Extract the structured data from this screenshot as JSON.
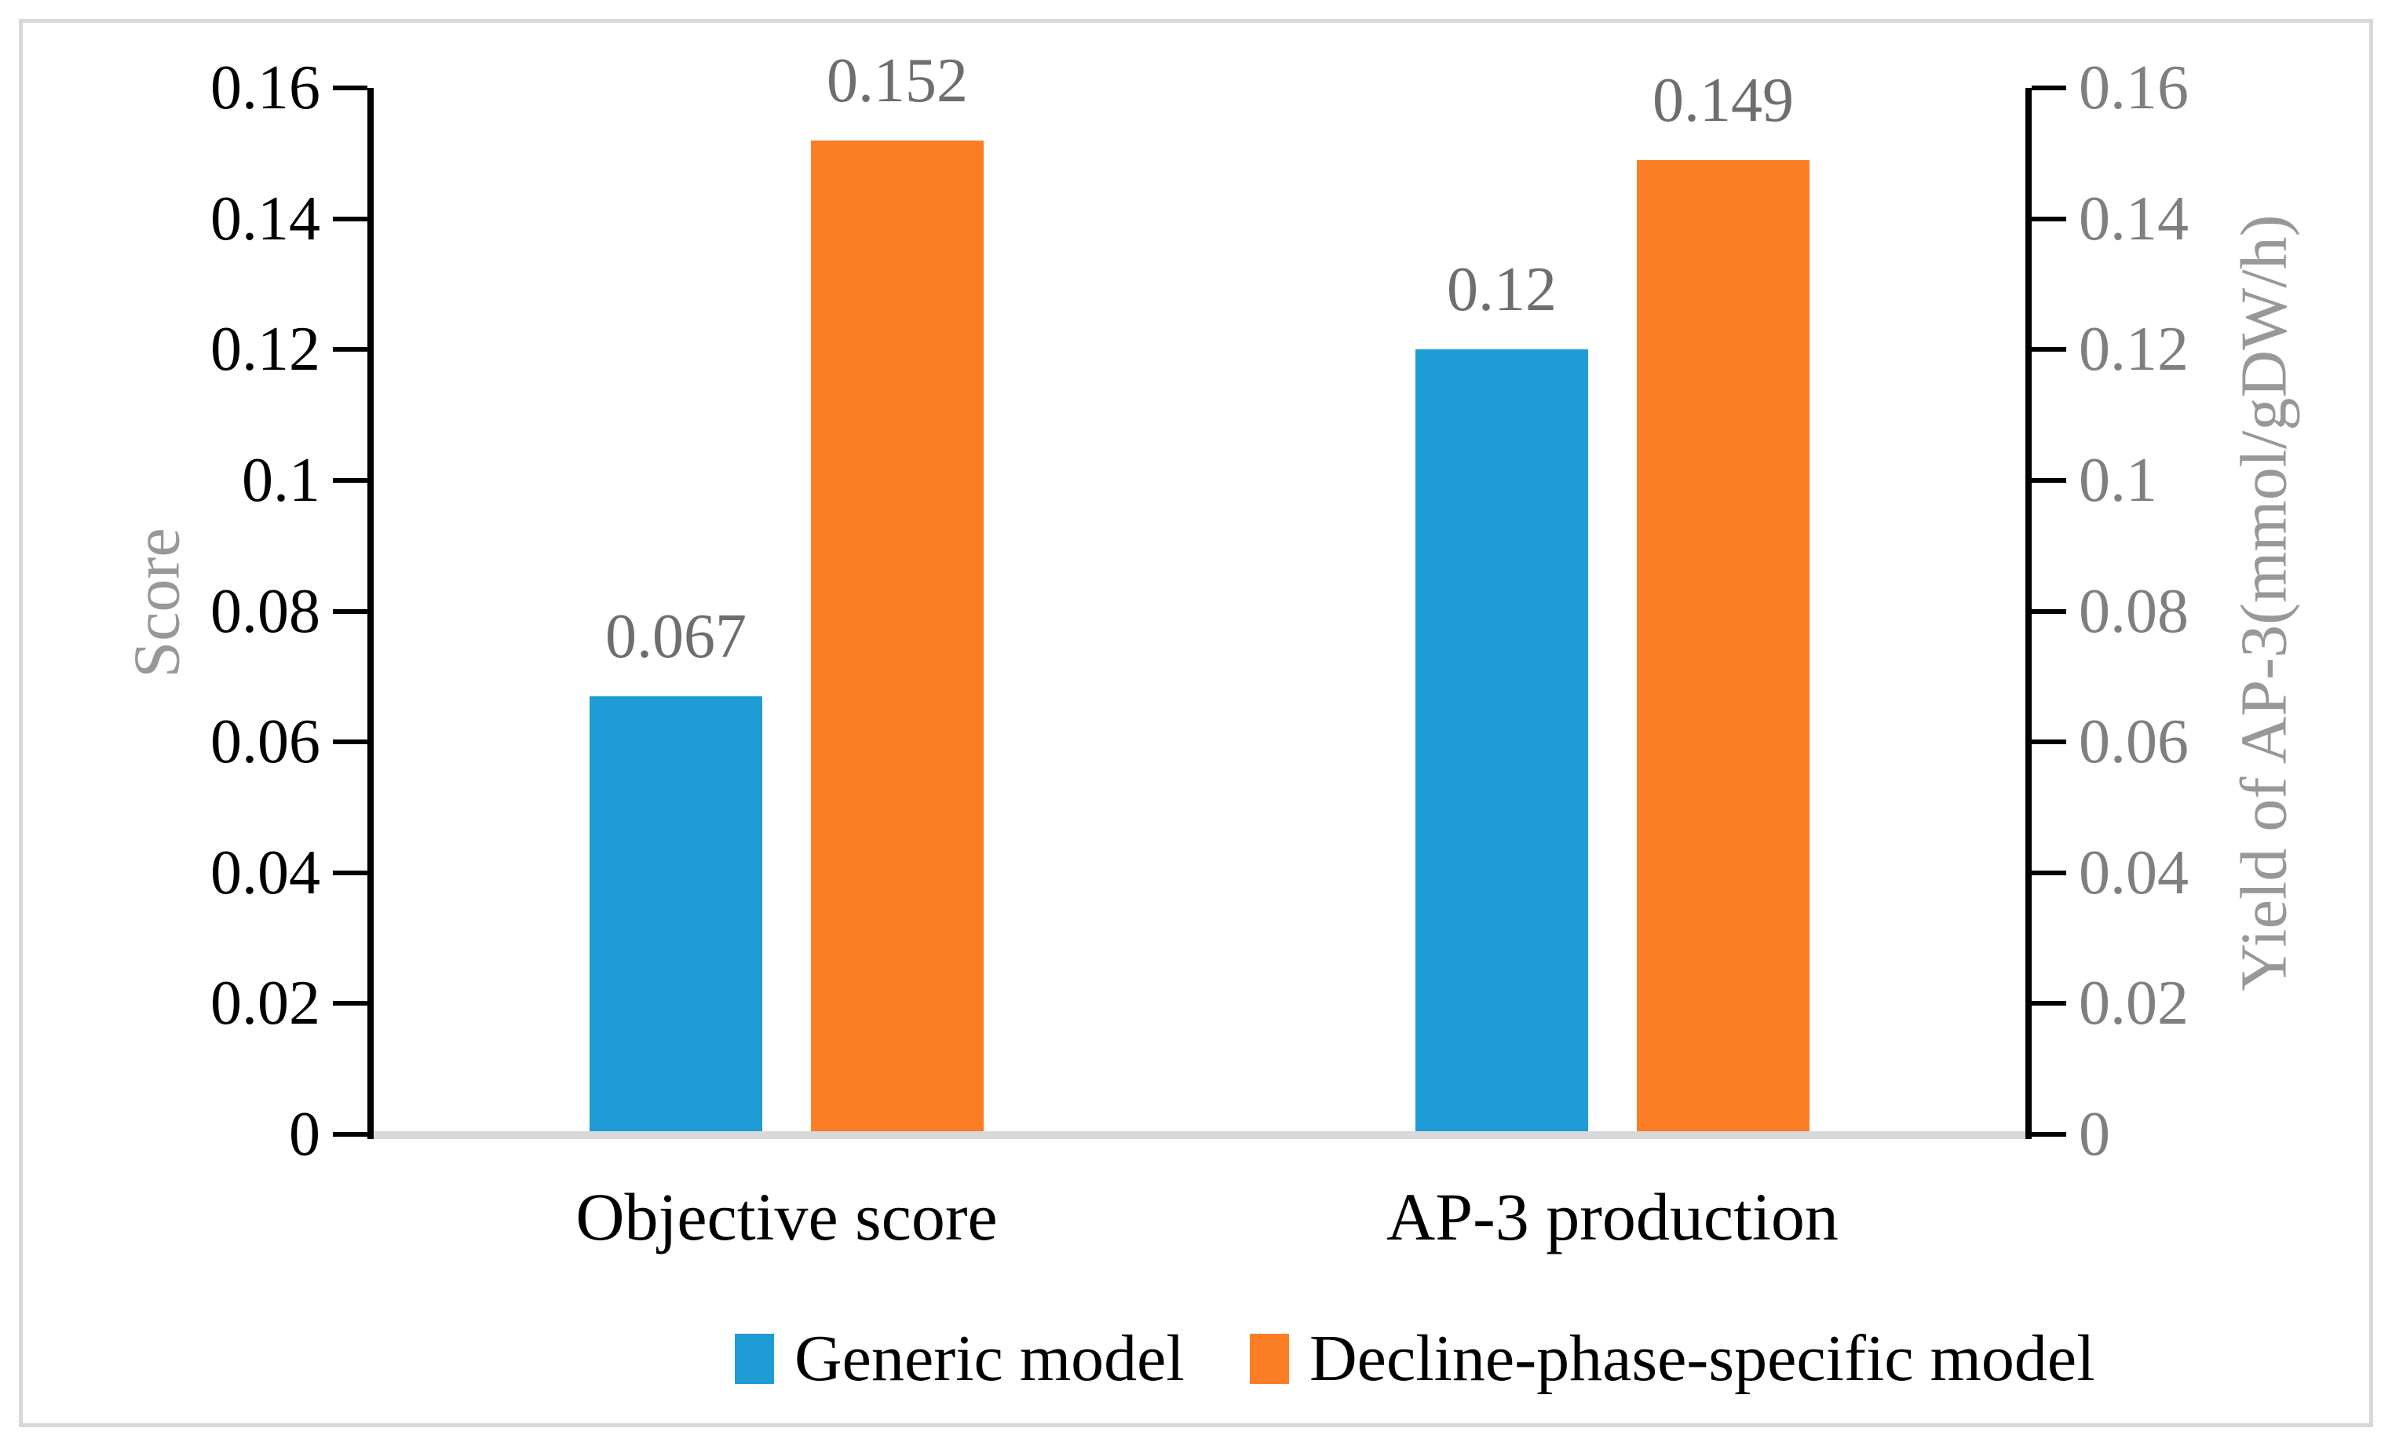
{
  "chart_data": {
    "type": "bar",
    "categories": [
      "Objective score",
      "AP-3 production"
    ],
    "series": [
      {
        "name": "Generic model",
        "color": "#1E9CD6",
        "values": [
          0.067,
          0.12
        ],
        "data_labels": [
          "0.067",
          "0.12"
        ]
      },
      {
        "name": "Decline-phase-specific model",
        "color": "#FB7D26",
        "values": [
          0.152,
          0.149
        ],
        "data_labels": [
          "0.152",
          "0.149"
        ]
      }
    ],
    "left_axis": {
      "title": "Score",
      "min": 0,
      "max": 0.16,
      "tick_step": 0.02,
      "tick_labels": [
        "0",
        "0.02",
        "0.04",
        "0.06",
        "0.08",
        "0.1",
        "0.12",
        "0.14",
        "0.16"
      ]
    },
    "right_axis": {
      "title": "Yield of AP-3(mmol/gDW/h)",
      "min": 0,
      "max": 0.16,
      "tick_step": 0.02,
      "tick_labels": [
        "0",
        "0.02",
        "0.04",
        "0.06",
        "0.08",
        "0.1",
        "0.12",
        "0.14",
        "0.16"
      ]
    },
    "legend_position": "bottom",
    "grid": false,
    "data_labels_shown": true,
    "styles": {
      "tick_label_left_color": "#000000",
      "tick_label_right_color": "#7f7f7f",
      "data_label_color": "#6e6e6e",
      "axis_title_color": "#989898",
      "axis_line_color": "#000000",
      "baseline_color": "#d9d9d9",
      "frame_border_color": "#d9d9d9"
    }
  }
}
